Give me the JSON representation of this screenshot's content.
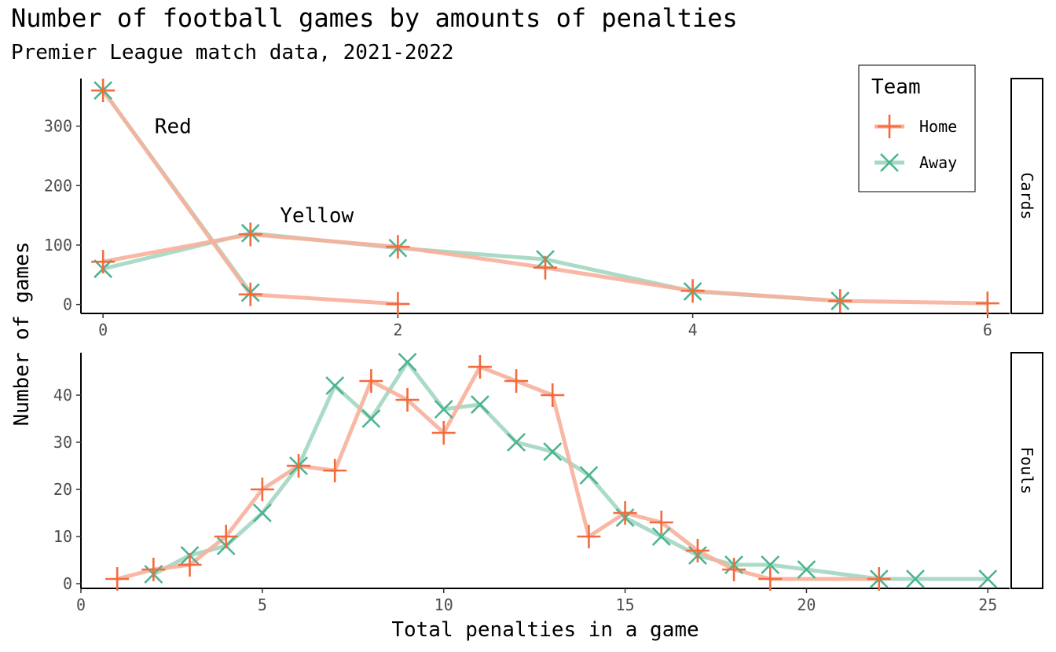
{
  "chart_data": {
    "type": "line",
    "title": "Number of football games by amounts of penalties",
    "subtitle": "Premier League match data, 2021-2022",
    "xlabel": "Total penalties in a game",
    "ylabel": "Number of games",
    "grid": false,
    "legend": {
      "title": "Team",
      "position": "top-right",
      "entries": [
        {
          "name": "Home",
          "color": "#F26B3F",
          "line_color": "#F7B09B",
          "marker": "plus"
        },
        {
          "name": "Away",
          "color": "#4DB38E",
          "line_color": "#A6D9C3",
          "marker": "cross"
        }
      ]
    },
    "panels": [
      {
        "strip": "Cards",
        "xlim": [
          -0.15,
          6.15
        ],
        "ylim": [
          -15,
          380
        ],
        "xticks": [
          0,
          2,
          4,
          6
        ],
        "yticks": [
          0,
          100,
          200,
          300
        ],
        "annotations": [
          {
            "text": "Red",
            "x": 0.35,
            "y": 300
          },
          {
            "text": "Yellow",
            "x": 1.2,
            "y": 150
          }
        ],
        "series": [
          {
            "name": "Home",
            "group": "Red",
            "x": [
              0,
              1,
              2
            ],
            "y": [
              360,
              17,
              1
            ]
          },
          {
            "name": "Away",
            "group": "Red",
            "x": [
              0,
              1
            ],
            "y": [
              360,
              20
            ]
          },
          {
            "name": "Home",
            "group": "Yellow",
            "x": [
              0,
              1,
              2,
              3,
              4,
              5,
              6
            ],
            "y": [
              72,
              118,
              97,
              62,
              23,
              6,
              2
            ]
          },
          {
            "name": "Away",
            "group": "Yellow",
            "x": [
              0,
              1,
              2,
              3,
              4,
              5
            ],
            "y": [
              60,
              120,
              95,
              76,
              22,
              6
            ]
          }
        ]
      },
      {
        "strip": "Fouls",
        "xlim": [
          0,
          25.6
        ],
        "ylim": [
          -1,
          49
        ],
        "xticks": [
          0,
          5,
          10,
          15,
          20,
          25
        ],
        "yticks": [
          0,
          10,
          20,
          30,
          40
        ],
        "series": [
          {
            "name": "Home",
            "x": [
              1,
              2,
              3,
              4,
              5,
              6,
              7,
              8,
              9,
              10,
              11,
              12,
              13,
              14,
              15,
              16,
              17,
              18,
              19,
              22
            ],
            "y": [
              1,
              3,
              4,
              10,
              20,
              25,
              24,
              43,
              39,
              32,
              46,
              43,
              40,
              10,
              15,
              13,
              7,
              3,
              1,
              1
            ]
          },
          {
            "name": "Away",
            "x": [
              2,
              3,
              4,
              5,
              6,
              7,
              8,
              9,
              10,
              11,
              12,
              13,
              14,
              15,
              16,
              17,
              18,
              19,
              20,
              22,
              23,
              25
            ],
            "y": [
              2,
              6,
              8,
              15,
              25,
              42,
              35,
              47,
              37,
              38,
              30,
              28,
              23,
              14,
              10,
              6,
              4,
              4,
              3,
              1,
              1,
              1
            ]
          }
        ]
      }
    ]
  }
}
